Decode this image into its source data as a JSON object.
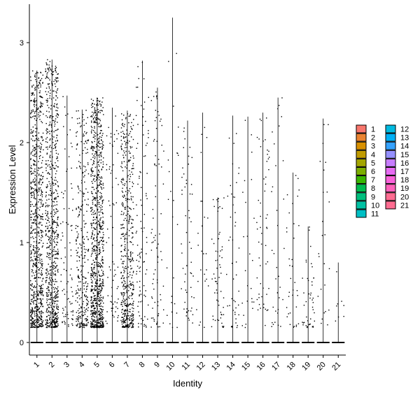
{
  "chart_data": {
    "type": "violin",
    "title": "",
    "xlabel": "Identity",
    "ylabel": "Expression Level",
    "ylim": [
      0,
      3.25
    ],
    "yticks": [
      0,
      1,
      2,
      3
    ],
    "categories": [
      "1",
      "2",
      "3",
      "4",
      "5",
      "6",
      "7",
      "8",
      "9",
      "10",
      "11",
      "12",
      "13",
      "14",
      "15",
      "16",
      "17",
      "18",
      "19",
      "20",
      "21"
    ],
    "max_values": [
      2.72,
      2.83,
      2.47,
      2.33,
      2.45,
      2.35,
      2.32,
      2.82,
      2.55,
      3.25,
      2.22,
      2.3,
      1.45,
      2.27,
      2.26,
      2.3,
      2.45,
      1.7,
      1.16,
      2.24,
      0.8
    ],
    "cell_counts": [
      800,
      750,
      90,
      300,
      900,
      70,
      500,
      100,
      80,
      25,
      55,
      25,
      60,
      45,
      25,
      55,
      35,
      35,
      45,
      25,
      8
    ],
    "legend": {
      "position": "right",
      "columns": 2,
      "items": [
        {
          "label": "1",
          "color": "#F8766D"
        },
        {
          "label": "2",
          "color": "#EA8331"
        },
        {
          "label": "3",
          "color": "#D89000"
        },
        {
          "label": "4",
          "color": "#C09B00"
        },
        {
          "label": "5",
          "color": "#A3A500"
        },
        {
          "label": "6",
          "color": "#7CAE00"
        },
        {
          "label": "7",
          "color": "#39B600"
        },
        {
          "label": "8",
          "color": "#00BB4E"
        },
        {
          "label": "9",
          "color": "#00BF7D"
        },
        {
          "label": "10",
          "color": "#00C1A3"
        },
        {
          "label": "11",
          "color": "#00BFC4"
        },
        {
          "label": "12",
          "color": "#00BAE0"
        },
        {
          "label": "13",
          "color": "#00B0F6"
        },
        {
          "label": "14",
          "color": "#35A2FF"
        },
        {
          "label": "15",
          "color": "#9590FF"
        },
        {
          "label": "16",
          "color": "#C77CFF"
        },
        {
          "label": "17",
          "color": "#E76BF3"
        },
        {
          "label": "18",
          "color": "#FA62DB"
        },
        {
          "label": "19",
          "color": "#FF62BC"
        },
        {
          "label": "20",
          "color": "#FF6C91"
        },
        {
          "label": "21",
          "color": "#FF6C91"
        }
      ]
    }
  }
}
